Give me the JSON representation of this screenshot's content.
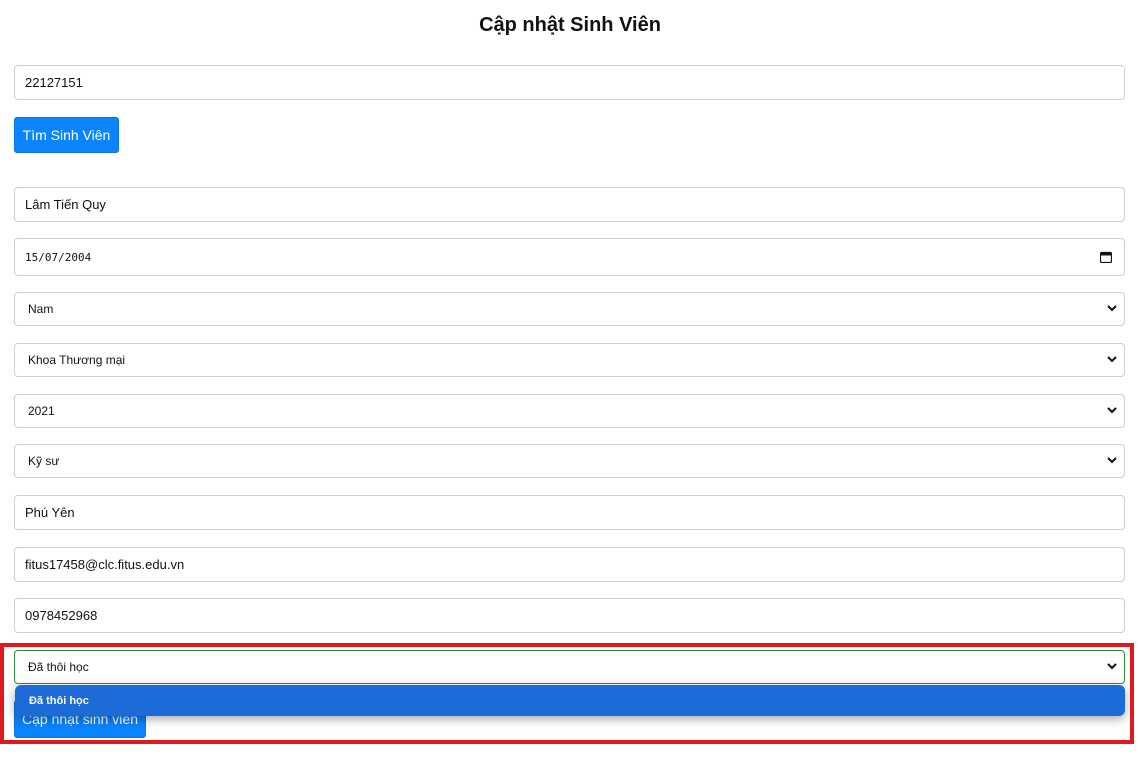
{
  "page": {
    "title": "Cập nhật Sinh Viên"
  },
  "form": {
    "student_id": "22127151",
    "find_button": "Tìm Sinh Viên",
    "full_name": "Lâm Tiến Quy",
    "birth_date": "15/07/2004",
    "gender": "Nam",
    "faculty": "Khoa Thương mại",
    "course": "2021",
    "program": "Kỹ sư",
    "address": "Phú Yên",
    "email": "fitus17458@clc.fitus.edu.vn",
    "phone": "0978452968",
    "status": "Đã thôi học",
    "update_button": "Cập nhật sinh viên"
  },
  "status_dropdown": {
    "options": [
      "Đã thôi học"
    ],
    "selected_index": 0
  },
  "colors": {
    "primary_button": "#0a84ff",
    "dropdown_highlight": "#1d6bd6",
    "annotation_border": "#e0191f"
  }
}
